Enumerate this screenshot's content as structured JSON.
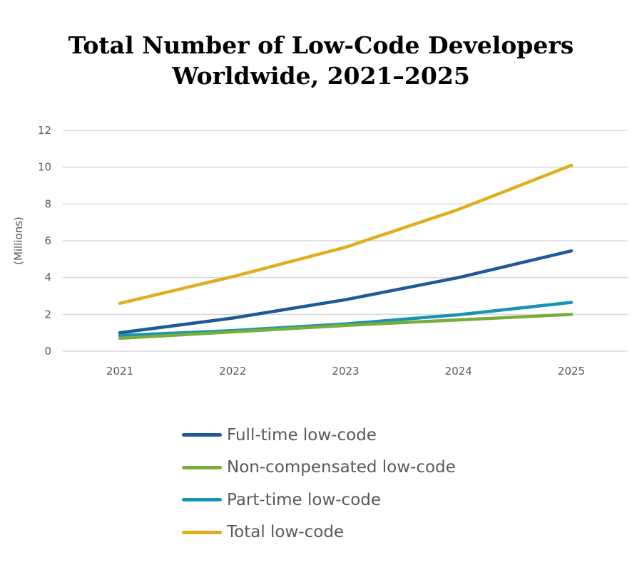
{
  "chart_data": {
    "type": "line",
    "title": "Total Number of Low-Code Developers Worldwide, 2021–2025",
    "title_lines": [
      "Total Number of Low-Code Developers",
      "Worldwide, 2021–2025"
    ],
    "xlabel": "",
    "ylabel": "(Millions)",
    "categories": [
      "2021",
      "2022",
      "2023",
      "2024",
      "2025"
    ],
    "ylim": [
      0,
      12
    ],
    "yticks": [
      "0",
      "2",
      "4",
      "6",
      "8",
      "10",
      "12"
    ],
    "grid": true,
    "legend_position": "bottom",
    "series": [
      {
        "name": "Full-time low-code",
        "color": "#1f5a96",
        "values": [
          1.0,
          1.8,
          2.8,
          4.0,
          5.45
        ]
      },
      {
        "name": "Non-compensated low-code",
        "color": "#78ad3c",
        "values": [
          0.7,
          1.05,
          1.4,
          1.7,
          2.0
        ]
      },
      {
        "name": "Part-time low-code",
        "color": "#1893b3",
        "values": [
          0.85,
          1.12,
          1.48,
          1.98,
          2.65
        ]
      },
      {
        "name": "Total low-code",
        "color": "#e0ad1e",
        "values": [
          2.6,
          4.05,
          5.65,
          7.7,
          10.1
        ]
      }
    ]
  }
}
